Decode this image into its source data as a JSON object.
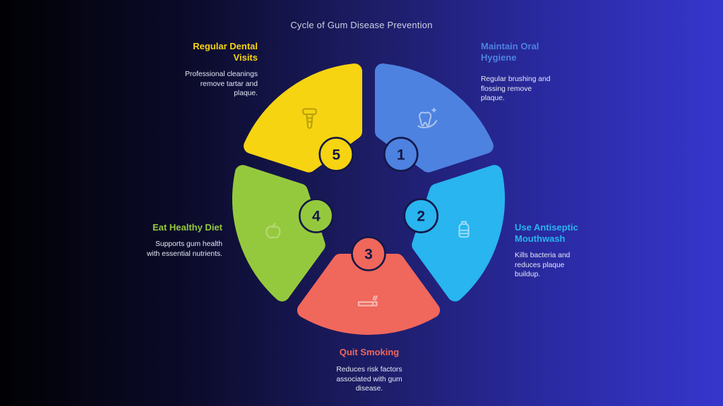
{
  "title": "Cycle of Gum Disease Prevention",
  "colors": {
    "background_left": "#010104",
    "background_right": "#3636cd",
    "gap_navy": "#1b1b60",
    "ring_outline": "#141747",
    "description_text": "#e4e8f4",
    "title_text": "#ccd1e2"
  },
  "chart_data": {
    "type": "cycle-diagram",
    "title": "Cycle of Gum Disease Prevention",
    "segments": [
      {
        "number": "1",
        "label": "Maintain Oral Hygiene",
        "description": "Regular brushing and flossing remove plaque.",
        "color": "#4d82e0",
        "icon": "tooth-sparkle-icon",
        "angle_deg": -54
      },
      {
        "number": "2",
        "label": "Use Antiseptic Mouthwash",
        "description": "Kills bacteria and reduces plaque buildup.",
        "color": "#29b5ef",
        "icon": "mouthwash-bottle-icon",
        "angle_deg": 18
      },
      {
        "number": "3",
        "label": "Quit Smoking",
        "description": "Reduces risk factors associated with gum disease.",
        "color": "#f0675c",
        "icon": "cigarette-icon",
        "angle_deg": 90
      },
      {
        "number": "4",
        "label": "Eat Healthy Diet",
        "description": "Supports gum health with essential nutrients.",
        "color": "#95c93d",
        "icon": "apple-icon",
        "angle_deg": 162
      },
      {
        "number": "5",
        "label": "Regular Dental Visits",
        "description": "Professional cleanings remove tartar and plaque.",
        "color": "#f6d411",
        "icon": "dental-implant-icon",
        "angle_deg": 234
      }
    ]
  }
}
